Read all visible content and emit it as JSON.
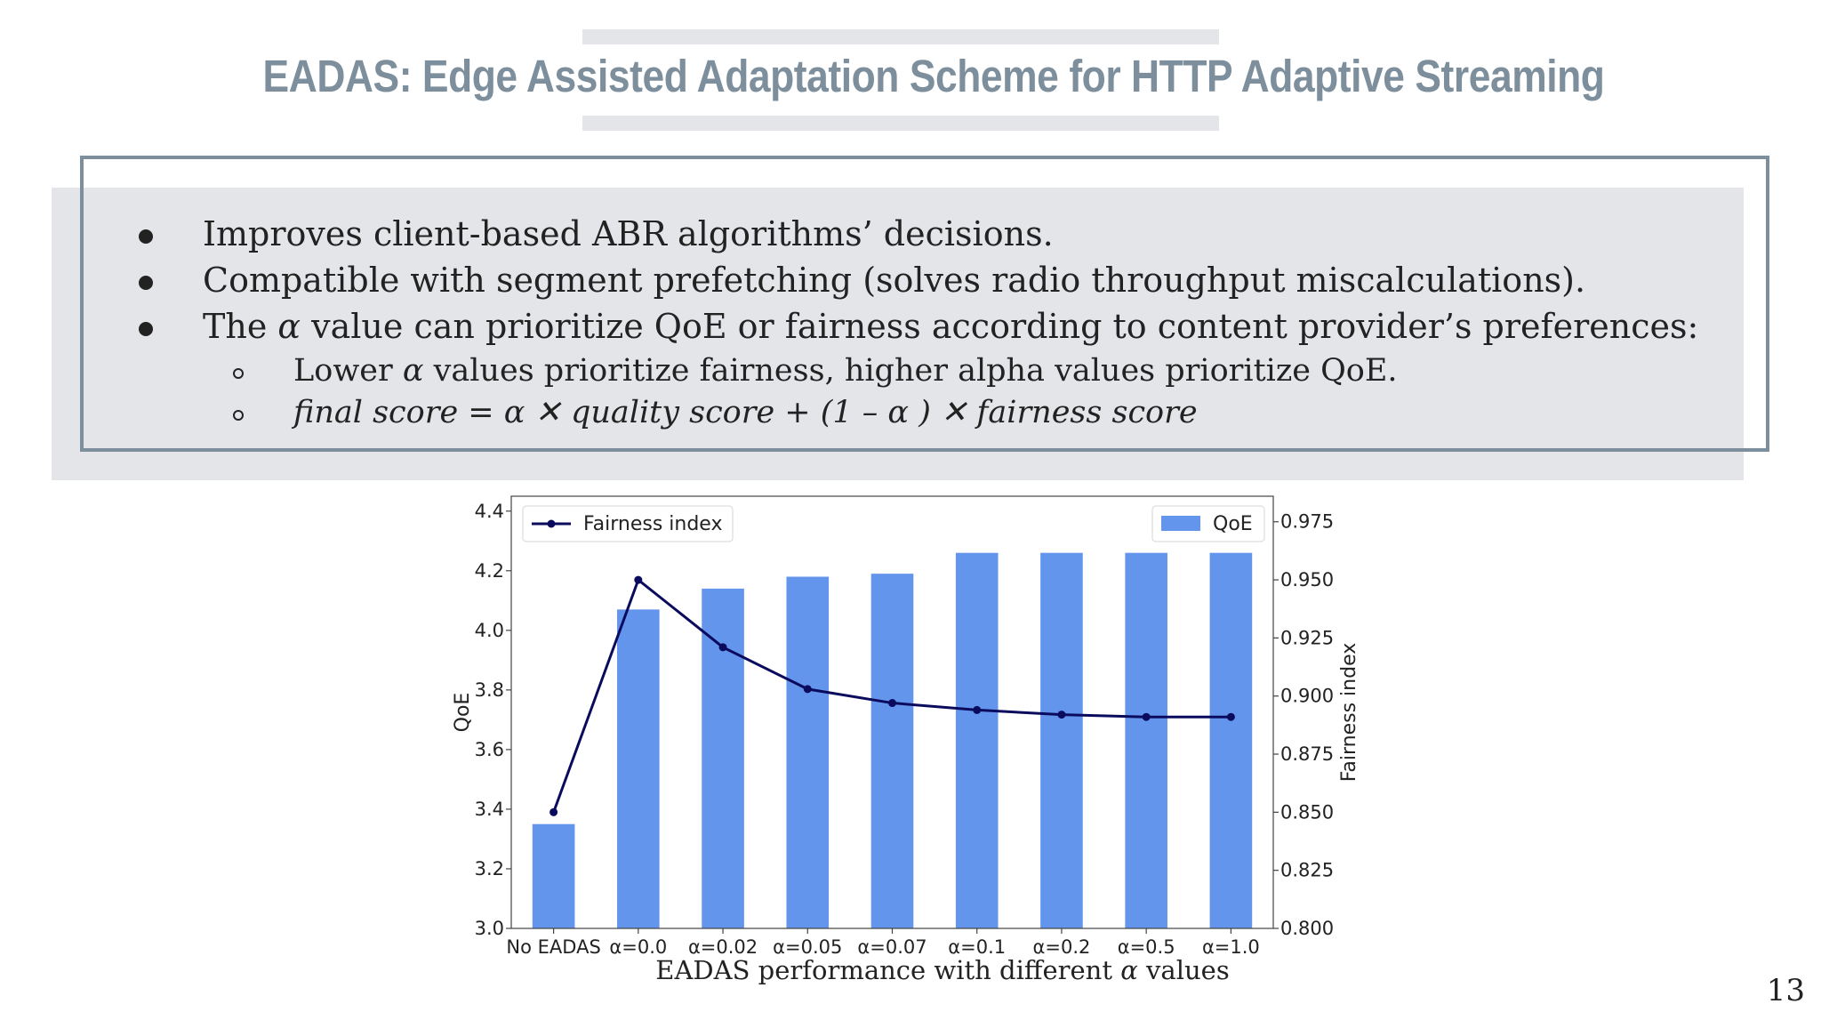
{
  "slide": {
    "title": "EADAS: Edge Assisted Adaptation Scheme for HTTP Adaptive Streaming",
    "page_number": "13",
    "bullets": [
      "Improves client-based ABR algorithms’ decisions.",
      "Compatible with segment prefetching (solves radio throughput miscalculations)."
    ],
    "bullet3": {
      "pre": "The ",
      "greek": "α",
      "post": " value can prioritize QoE or fairness according to content provider’s preferences:"
    },
    "sub1": {
      "pre": "Lower ",
      "greek": "α",
      "post": " values prioritize fairness, higher alpha values prioritize QoE."
    },
    "sub2": {
      "formula": "final score = α ✕ quality score + (1 – α ) ✕ fairness score"
    },
    "caption": {
      "pre": "EADAS performance with different ",
      "greek": "α",
      "post": " values"
    },
    "colors": {
      "accent": "#7d8f9c",
      "panel": "#e3e5e8",
      "bar": "#6495ed",
      "line": "#0b0b5e"
    }
  },
  "chart_data": {
    "type": "bar",
    "categories": [
      "No EADAS",
      "α=0.0",
      "α=0.02",
      "α=0.05",
      "α=0.07",
      "α=0.1",
      "α=0.2",
      "α=0.5",
      "α=1.0"
    ],
    "series": [
      {
        "name": "QoE",
        "type": "bar",
        "axis": "left",
        "values": [
          3.35,
          4.07,
          4.14,
          4.18,
          4.19,
          4.26,
          4.26,
          4.26,
          4.26
        ]
      },
      {
        "name": "Fairness index",
        "type": "line",
        "axis": "right",
        "values": [
          0.85,
          0.95,
          0.921,
          0.903,
          0.897,
          0.894,
          0.892,
          0.891,
          0.891
        ]
      }
    ],
    "ylabel": "QoE",
    "y2label": "Fairness index",
    "ylim": [
      3.0,
      4.45
    ],
    "y2lim": [
      0.8,
      0.986
    ],
    "yticks": [
      "3.0",
      "3.2",
      "3.4",
      "3.6",
      "3.8",
      "4.0",
      "4.2",
      "4.4"
    ],
    "y2ticks": [
      "0.800",
      "0.825",
      "0.850",
      "0.875",
      "0.900",
      "0.925",
      "0.950",
      "0.975"
    ],
    "legend": {
      "line": "top-left",
      "bar": "top-right"
    },
    "grid": false
  }
}
